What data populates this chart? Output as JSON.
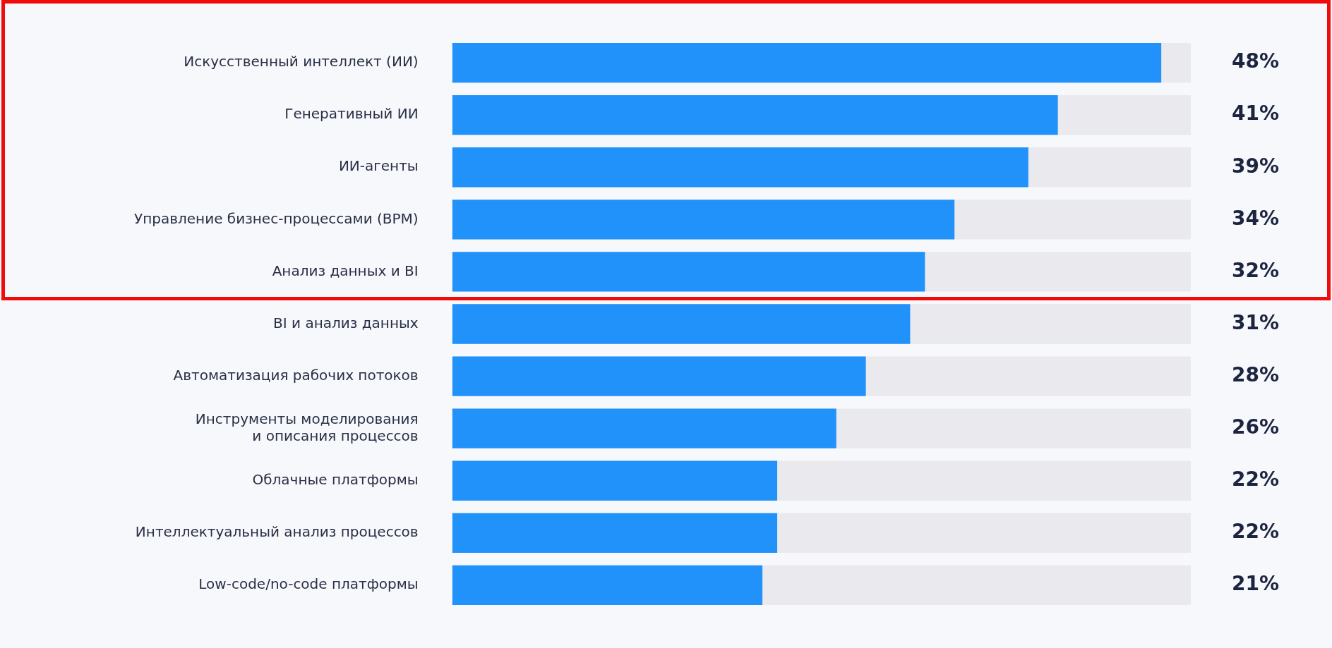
{
  "chart_data": {
    "type": "bar",
    "orientation": "horizontal",
    "categories": [
      "Искусственный интеллект (ИИ)",
      "Генеративный ИИ",
      "ИИ-агенты",
      "Управление бизнес-процессами (BPM)",
      "Анализ данных и BI",
      "BI и анализ данных",
      "Автоматизация рабочих потоков",
      "Инструменты моделирования и описания процессов",
      "Облачные платформы",
      "Интеллектуальный анализ процессов",
      "Low-code/no-code платформы"
    ],
    "values": [
      48,
      41,
      39,
      34,
      32,
      31,
      28,
      26,
      22,
      22,
      21
    ],
    "value_labels": [
      "48%",
      "41%",
      "39%",
      "34%",
      "32%",
      "31%",
      "28%",
      "26%",
      "22%",
      "22%",
      "21%"
    ],
    "color": "#2292fb",
    "xlim": [
      0,
      50
    ],
    "tick_labels": "y",
    "legend": false
  }
}
